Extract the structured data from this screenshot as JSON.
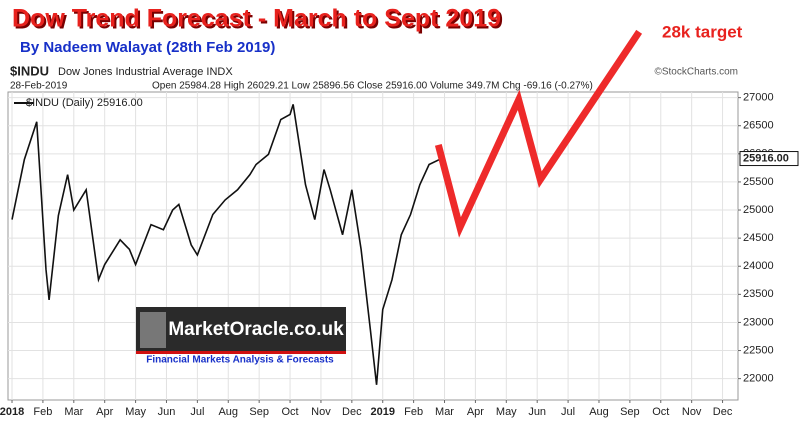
{
  "chart_data": {
    "type": "line",
    "title": "Dow Trend Forecast - March to Sept 2019",
    "subtitle": "By Nadeem Walayat  (28th Feb 2019)",
    "annotation": "28k target",
    "symbol": "$INDU",
    "symbol_name": "Dow Jones Industrial Average INDX",
    "source": "©StockCharts.com",
    "date": "28-Feb-2019",
    "quote": "Open 25984.28 High 26029.21 Low 25896.56 Close 25916.00 Volume 349.7M Chg -69.16 (-0.27%)",
    "watermark": "MarketOracle.co.uk",
    "watermark_caption": "Financial Markets Analysis & Forecasts",
    "last_price": {
      "value": 25916,
      "label": "25916.00"
    },
    "series": [
      {
        "name": "$INDU (Daily) 25916.00",
        "color": "#111111",
        "x": [
          0,
          0.4,
          0.8,
          1.1,
          1.2,
          1.5,
          1.8,
          2.0,
          2.4,
          2.8,
          3.0,
          3.5,
          3.8,
          4.0,
          4.5,
          4.9,
          5.2,
          5.4,
          5.8,
          6.0,
          6.5,
          6.9,
          7.3,
          7.7,
          7.9,
          8.3,
          8.7,
          9.0,
          9.1,
          9.5,
          9.8,
          10.1,
          10.3,
          10.7,
          11.0,
          11.3,
          11.6,
          11.8,
          12.0,
          12.3,
          12.6,
          12.9,
          13.2,
          13.5,
          13.9
        ],
        "values": [
          24830,
          25900,
          26570,
          23940,
          23400,
          24900,
          25630,
          25000,
          25360,
          23760,
          24030,
          24470,
          24300,
          24030,
          24740,
          24650,
          25000,
          25100,
          24380,
          24200,
          24920,
          25180,
          25360,
          25630,
          25810,
          25990,
          26610,
          26700,
          26880,
          25450,
          24830,
          25720,
          25360,
          24560,
          25360,
          24300,
          22870,
          21890,
          23230,
          23760,
          24560,
          24920,
          25450,
          25810,
          25916
        ]
      },
      {
        "color": "#ee2a2a",
        "x": [
          13.8,
          14.5,
          16.4,
          17.1,
          20.3
        ],
        "values": [
          26160,
          24690,
          26960,
          25540,
          28170
        ]
      }
    ],
    "xlim": [
      -0.13,
      23.5
    ],
    "ylim": [
      21620,
      27100
    ],
    "xticks": [
      {
        "value": 0,
        "label": "2018"
      },
      {
        "value": 1,
        "label": "Feb"
      },
      {
        "value": 2,
        "label": "Mar"
      },
      {
        "value": 3,
        "label": "Apr"
      },
      {
        "value": 4,
        "label": "May"
      },
      {
        "value": 5,
        "label": "Jun"
      },
      {
        "value": 6,
        "label": "Jul"
      },
      {
        "value": 7,
        "label": "Aug"
      },
      {
        "value": 8,
        "label": "Sep"
      },
      {
        "value": 9,
        "label": "Oct"
      },
      {
        "value": 10,
        "label": "Nov"
      },
      {
        "value": 11,
        "label": "Dec"
      },
      {
        "value": 12,
        "label": "2019"
      },
      {
        "value": 13,
        "label": "Feb"
      },
      {
        "value": 14,
        "label": "Mar"
      },
      {
        "value": 15,
        "label": "Apr"
      },
      {
        "value": 16,
        "label": "May"
      },
      {
        "value": 17,
        "label": "Jun"
      },
      {
        "value": 18,
        "label": "Jul"
      },
      {
        "value": 19,
        "label": "Aug"
      },
      {
        "value": 20,
        "label": "Sep"
      },
      {
        "value": 21,
        "label": "Oct"
      },
      {
        "value": 22,
        "label": "Nov"
      },
      {
        "value": 23,
        "label": "Dec"
      }
    ],
    "yticks": [
      22000,
      22500,
      23000,
      23500,
      24000,
      24500,
      25000,
      25500,
      26000,
      26500,
      27000
    ],
    "grid": true
  }
}
